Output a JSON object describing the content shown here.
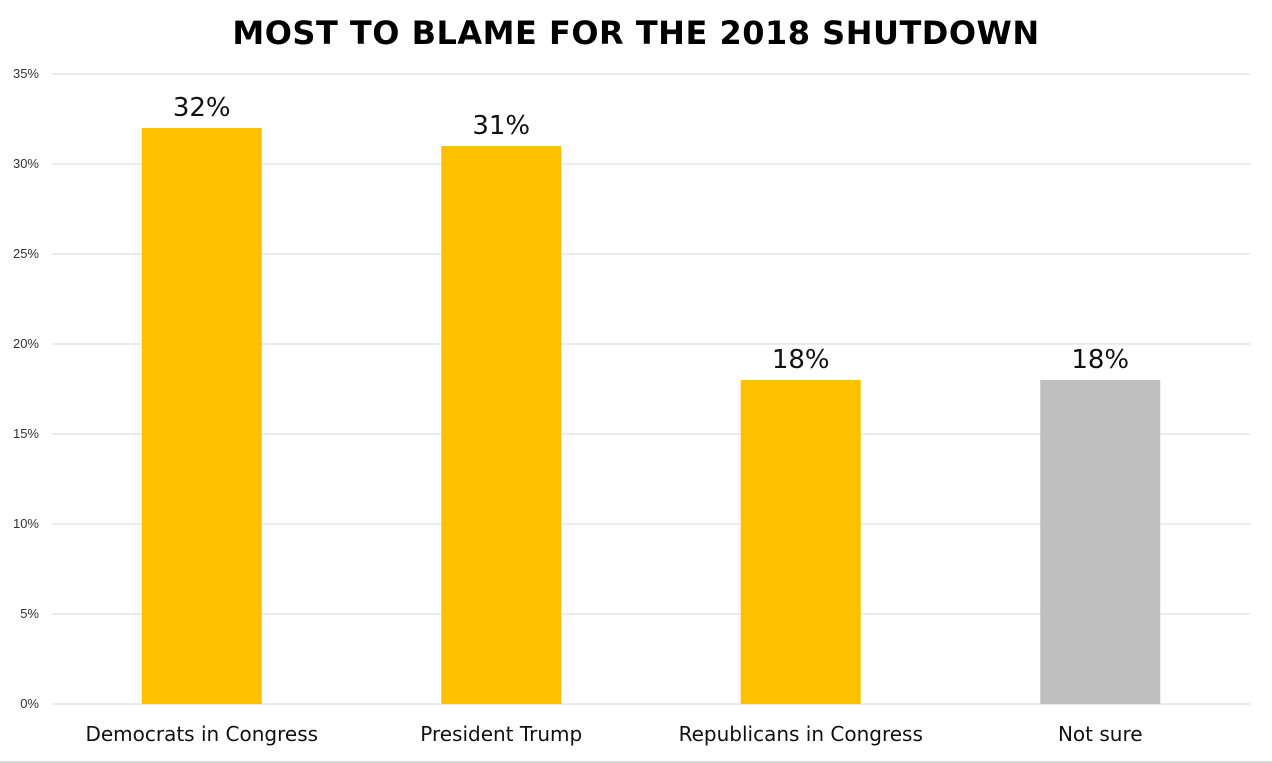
{
  "chart_data": {
    "type": "bar",
    "title": "MOST TO BLAME FOR THE 2018 SHUTDOWN",
    "xlabel": "",
    "ylabel": "",
    "categories": [
      "Democrats in Congress",
      "President Trump",
      "Republicans in Congress",
      "Not sure"
    ],
    "values": [
      32,
      31,
      18,
      18
    ],
    "data_labels": [
      "32%",
      "31%",
      "18%",
      "18%"
    ],
    "bar_colors": [
      "#FFC000",
      "#FFC000",
      "#FFC000",
      "#BFBFBF"
    ],
    "ylim": [
      0,
      35
    ],
    "yticks": [
      0,
      5,
      10,
      15,
      20,
      25,
      30,
      35
    ],
    "ytick_labels": [
      "0%",
      "5%",
      "10%",
      "15%",
      "20%",
      "25%",
      "30%",
      "35%"
    ],
    "grid": true,
    "legend": "none"
  }
}
